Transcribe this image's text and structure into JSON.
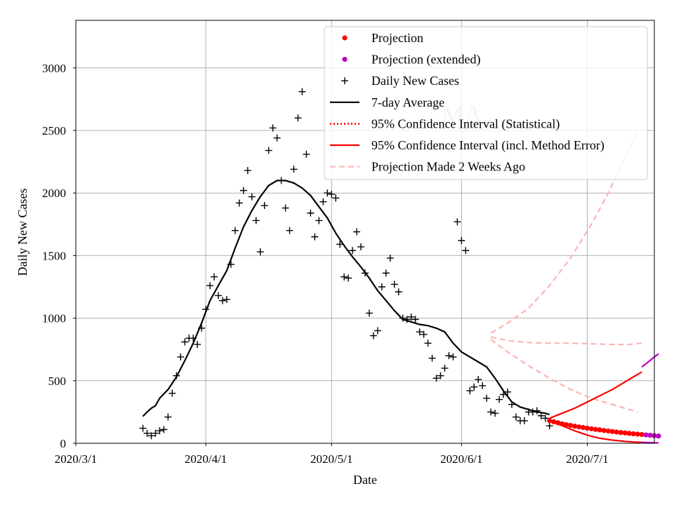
{
  "chart_data": {
    "type": "scatter",
    "title": "",
    "watermark": "MA",
    "xlabel": "Date",
    "ylabel": "Daily New Cases",
    "x_start_date": "2020-03-01",
    "xlim_days": [
      0,
      138
    ],
    "ylim": [
      0,
      3380
    ],
    "x_ticks": [
      {
        "day": 0,
        "label": "2020/3/1"
      },
      {
        "day": 31,
        "label": "2020/4/1"
      },
      {
        "day": 61,
        "label": "2020/5/1"
      },
      {
        "day": 92,
        "label": "2020/6/1"
      },
      {
        "day": 122,
        "label": "2020/7/1"
      }
    ],
    "y_ticks": [
      {
        "value": 0,
        "label": "0"
      },
      {
        "value": 500,
        "label": "500"
      },
      {
        "value": 1000,
        "label": "1000"
      },
      {
        "value": 1500,
        "label": "1500"
      },
      {
        "value": 2000,
        "label": "2000"
      },
      {
        "value": 2500,
        "label": "2500"
      },
      {
        "value": 3000,
        "label": "3000"
      }
    ],
    "grid": true,
    "legend_position": "top-right",
    "colors": {
      "projection": "#ff0000",
      "extended": "#bf00bf",
      "daily": "#000000",
      "avg": "#000000",
      "ci": "#ff0000",
      "past": "#ffb3b3"
    },
    "legend": [
      {
        "key": "projection",
        "label": "Projection",
        "style": "dot",
        "color": "#ff0000"
      },
      {
        "key": "extended",
        "label": "Projection (extended)",
        "style": "dot",
        "color": "#bf00bf"
      },
      {
        "key": "daily",
        "label": "Daily New Cases",
        "style": "plus",
        "color": "#000000"
      },
      {
        "key": "avg",
        "label": "7-day Average",
        "style": "line",
        "color": "#000000"
      },
      {
        "key": "ci_stat",
        "label": "95% Confidence Interval (Statistical)",
        "style": "dotted",
        "color": "#ff0000"
      },
      {
        "key": "ci_full",
        "label": "95% Confidence Interval (incl. Method Error)",
        "style": "line",
        "color": "#ff0000"
      },
      {
        "key": "past",
        "label": "Projection Made 2 Weeks Ago",
        "style": "dashed",
        "color": "#ffb3b3"
      }
    ],
    "daily_new_cases": [
      [
        16,
        120
      ],
      [
        17,
        80
      ],
      [
        18,
        60
      ],
      [
        19,
        80
      ],
      [
        20,
        100
      ],
      [
        21,
        110
      ],
      [
        22,
        210
      ],
      [
        23,
        400
      ],
      [
        24,
        540
      ],
      [
        25,
        690
      ],
      [
        26,
        810
      ],
      [
        27,
        840
      ],
      [
        28,
        840
      ],
      [
        29,
        790
      ],
      [
        30,
        920
      ],
      [
        31,
        1070
      ],
      [
        32,
        1260
      ],
      [
        33,
        1330
      ],
      [
        34,
        1180
      ],
      [
        35,
        1140
      ],
      [
        36,
        1150
      ],
      [
        37,
        1430
      ],
      [
        38,
        1700
      ],
      [
        39,
        1920
      ],
      [
        40,
        2020
      ],
      [
        41,
        2180
      ],
      [
        42,
        1970
      ],
      [
        43,
        1780
      ],
      [
        44,
        1530
      ],
      [
        45,
        1900
      ],
      [
        46,
        2340
      ],
      [
        47,
        2520
      ],
      [
        48,
        2440
      ],
      [
        49,
        2100
      ],
      [
        50,
        1880
      ],
      [
        51,
        1700
      ],
      [
        52,
        2190
      ],
      [
        53,
        2600
      ],
      [
        54,
        2810
      ],
      [
        55,
        2310
      ],
      [
        56,
        1840
      ],
      [
        57,
        1650
      ],
      [
        58,
        1780
      ],
      [
        59,
        1930
      ],
      [
        60,
        2000
      ],
      [
        61,
        1990
      ],
      [
        62,
        1960
      ],
      [
        63,
        1590
      ],
      [
        64,
        1330
      ],
      [
        65,
        1320
      ],
      [
        66,
        1540
      ],
      [
        67,
        1690
      ],
      [
        68,
        1570
      ],
      [
        69,
        1360
      ],
      [
        70,
        1040
      ],
      [
        71,
        860
      ],
      [
        72,
        900
      ],
      [
        73,
        1250
      ],
      [
        74,
        1360
      ],
      [
        75,
        1480
      ],
      [
        76,
        1270
      ],
      [
        77,
        1210
      ],
      [
        78,
        1000
      ],
      [
        79,
        990
      ],
      [
        80,
        1010
      ],
      [
        81,
        990
      ],
      [
        82,
        890
      ],
      [
        83,
        870
      ],
      [
        84,
        800
      ],
      [
        85,
        680
      ],
      [
        86,
        520
      ],
      [
        87,
        540
      ],
      [
        88,
        600
      ],
      [
        89,
        700
      ],
      [
        90,
        690
      ],
      [
        91,
        1770
      ],
      [
        92,
        1620
      ],
      [
        93,
        1540
      ],
      [
        94,
        420
      ],
      [
        95,
        450
      ],
      [
        96,
        510
      ],
      [
        97,
        460
      ],
      [
        98,
        360
      ],
      [
        99,
        250
      ],
      [
        100,
        240
      ],
      [
        101,
        350
      ],
      [
        102,
        390
      ],
      [
        103,
        410
      ],
      [
        104,
        310
      ],
      [
        105,
        210
      ],
      [
        106,
        180
      ],
      [
        107,
        180
      ],
      [
        108,
        250
      ],
      [
        109,
        250
      ],
      [
        110,
        260
      ],
      [
        111,
        220
      ],
      [
        112,
        200
      ],
      [
        113,
        140
      ]
    ],
    "seven_day_average": [
      [
        16,
        215
      ],
      [
        17,
        250
      ],
      [
        18,
        280
      ],
      [
        19,
        300
      ],
      [
        20,
        360
      ],
      [
        22,
        430
      ],
      [
        24,
        530
      ],
      [
        26,
        660
      ],
      [
        28,
        800
      ],
      [
        30,
        960
      ],
      [
        32,
        1140
      ],
      [
        34,
        1260
      ],
      [
        36,
        1380
      ],
      [
        38,
        1560
      ],
      [
        40,
        1730
      ],
      [
        42,
        1860
      ],
      [
        44,
        1970
      ],
      [
        46,
        2060
      ],
      [
        48,
        2100
      ],
      [
        50,
        2100
      ],
      [
        52,
        2080
      ],
      [
        54,
        2040
      ],
      [
        56,
        1980
      ],
      [
        58,
        1890
      ],
      [
        60,
        1800
      ],
      [
        62,
        1680
      ],
      [
        64,
        1580
      ],
      [
        66,
        1490
      ],
      [
        68,
        1410
      ],
      [
        70,
        1320
      ],
      [
        72,
        1220
      ],
      [
        74,
        1140
      ],
      [
        76,
        1060
      ],
      [
        78,
        990
      ],
      [
        80,
        970
      ],
      [
        82,
        950
      ],
      [
        84,
        940
      ],
      [
        86,
        920
      ],
      [
        88,
        890
      ],
      [
        90,
        800
      ],
      [
        92,
        730
      ],
      [
        94,
        690
      ],
      [
        96,
        650
      ],
      [
        98,
        610
      ],
      [
        100,
        520
      ],
      [
        102,
        420
      ],
      [
        104,
        330
      ],
      [
        106,
        290
      ],
      [
        108,
        270
      ],
      [
        110,
        250
      ],
      [
        112,
        240
      ],
      [
        113,
        230
      ]
    ],
    "projection": [
      [
        113,
        180
      ],
      [
        114,
        172
      ],
      [
        115,
        164
      ],
      [
        116,
        156
      ],
      [
        117,
        149
      ],
      [
        118,
        143
      ],
      [
        119,
        137
      ],
      [
        120,
        131
      ],
      [
        121,
        126
      ],
      [
        122,
        121
      ],
      [
        123,
        116
      ],
      [
        124,
        111
      ],
      [
        125,
        107
      ],
      [
        126,
        102
      ],
      [
        127,
        98
      ],
      [
        128,
        94
      ],
      [
        129,
        90
      ],
      [
        130,
        86
      ],
      [
        131,
        83
      ],
      [
        132,
        79
      ],
      [
        133,
        76
      ],
      [
        134,
        73
      ],
      [
        135,
        70
      ]
    ],
    "projection_extended": [
      [
        136,
        67
      ],
      [
        137,
        64
      ],
      [
        138,
        61
      ],
      [
        139,
        58
      ]
    ],
    "ci_upper": [
      [
        113,
        200
      ],
      [
        116,
        240
      ],
      [
        119,
        280
      ],
      [
        122,
        330
      ],
      [
        125,
        380
      ],
      [
        128,
        430
      ],
      [
        131,
        490
      ],
      [
        133,
        530
      ],
      [
        135,
        570
      ]
    ],
    "ci_lower": [
      [
        113,
        180
      ],
      [
        116,
        140
      ],
      [
        119,
        100
      ],
      [
        122,
        65
      ],
      [
        125,
        40
      ],
      [
        128,
        25
      ],
      [
        131,
        15
      ],
      [
        133,
        10
      ],
      [
        135,
        8
      ]
    ],
    "ci_upper_extended": [
      [
        135,
        610
      ],
      [
        136,
        635
      ],
      [
        138,
        690
      ],
      [
        139,
        715
      ]
    ],
    "ci_lower_extended": [
      [
        135,
        8
      ],
      [
        137,
        5
      ],
      [
        139,
        3
      ]
    ],
    "past_projection_center": [
      [
        99,
        850
      ],
      [
        103,
        820
      ],
      [
        108,
        805
      ],
      [
        113,
        800
      ],
      [
        118,
        800
      ],
      [
        123,
        795
      ],
      [
        128,
        790
      ],
      [
        132,
        790
      ],
      [
        135,
        800
      ]
    ],
    "past_projection_upper": [
      [
        99,
        880
      ],
      [
        103,
        960
      ],
      [
        108,
        1080
      ],
      [
        113,
        1260
      ],
      [
        118,
        1480
      ],
      [
        123,
        1750
      ],
      [
        127,
        2000
      ],
      [
        131,
        2280
      ],
      [
        133,
        2420
      ],
      [
        134,
        2480
      ]
    ],
    "past_projection_lower": [
      [
        99,
        830
      ],
      [
        103,
        730
      ],
      [
        108,
        620
      ],
      [
        113,
        520
      ],
      [
        118,
        430
      ],
      [
        123,
        360
      ],
      [
        128,
        310
      ],
      [
        132,
        270
      ],
      [
        134,
        250
      ]
    ]
  }
}
